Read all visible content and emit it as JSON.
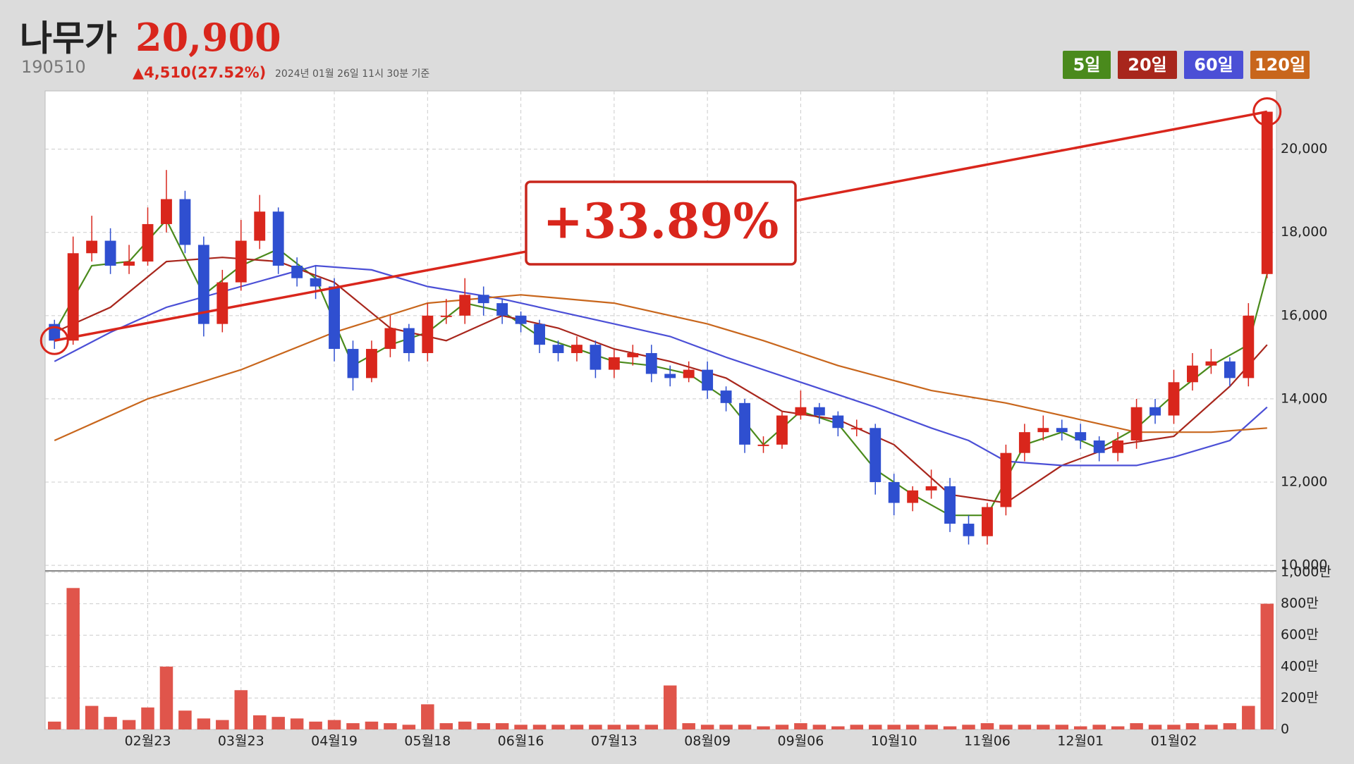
{
  "chart_data": {
    "type": "candlestick",
    "title": "나무가",
    "price": "20,900",
    "code": "190510",
    "change": "▲4,510(27.52%)",
    "timestamp": "2024년 01월 26일 11시 30분 기준",
    "annotation": "+33.89%",
    "grid": true,
    "up_color": "#d9261c",
    "down_color": "#2f4fd0",
    "volume_color": "#e0554b",
    "categories": [
      null,
      null,
      null,
      null,
      null,
      "02월23",
      null,
      null,
      null,
      null,
      "03월23",
      null,
      null,
      null,
      null,
      "04월19",
      null,
      null,
      null,
      null,
      "05월18",
      null,
      null,
      null,
      null,
      "06월16",
      null,
      null,
      null,
      null,
      "07월13",
      null,
      null,
      null,
      null,
      "08월09",
      null,
      null,
      null,
      null,
      "09월06",
      null,
      null,
      null,
      null,
      "10월10",
      null,
      null,
      null,
      null,
      "11월06",
      null,
      null,
      null,
      null,
      "12월01",
      null,
      null,
      null,
      null,
      "01월02",
      null,
      null,
      null,
      null,
      null
    ],
    "open": [
      15800,
      15400,
      17500,
      17800,
      17200,
      17300,
      18200,
      18800,
      17700,
      15800,
      16800,
      17800,
      18500,
      17200,
      16900,
      16700,
      15200,
      14500,
      15200,
      15700,
      15100,
      16000,
      16000,
      16500,
      16300,
      16000,
      15800,
      15300,
      15100,
      15300,
      14700,
      15000,
      15100,
      14600,
      14500,
      14700,
      14200,
      13900,
      12900,
      12900,
      13600,
      13800,
      13600,
      13300,
      13300,
      12000,
      11500,
      11800,
      11900,
      11000,
      10700,
      11400,
      12700,
      13200,
      13300,
      13200,
      13000,
      12700,
      13000,
      13800,
      13600,
      14400,
      14800,
      14900,
      14500,
      17000
    ],
    "high": [
      15900,
      17900,
      18400,
      18100,
      17700,
      18600,
      19500,
      19000,
      17900,
      17100,
      18300,
      18900,
      18600,
      17400,
      17200,
      16900,
      15400,
      15400,
      16000,
      15800,
      16300,
      16400,
      16900,
      16700,
      16400,
      16100,
      15900,
      15400,
      15500,
      15400,
      15200,
      15300,
      15300,
      14800,
      14900,
      14900,
      14300,
      14000,
      13100,
      13700,
      14200,
      13900,
      13700,
      13500,
      13400,
      12200,
      11900,
      12300,
      12100,
      11200,
      11500,
      12900,
      13400,
      13600,
      13500,
      13400,
      13100,
      13200,
      14000,
      14000,
      14700,
      15100,
      15200,
      15000,
      16300,
      20900
    ],
    "low": [
      15200,
      15300,
      17300,
      17000,
      17000,
      17200,
      18000,
      17500,
      15500,
      15600,
      16600,
      17600,
      17000,
      16700,
      16400,
      14900,
      14200,
      14400,
      15000,
      14900,
      14900,
      15800,
      15800,
      16000,
      15800,
      15600,
      15100,
      14900,
      14900,
      14500,
      14500,
      14800,
      14400,
      14300,
      14400,
      14000,
      13700,
      12700,
      12700,
      12800,
      13500,
      13400,
      13100,
      13100,
      11700,
      11200,
      11300,
      11600,
      10800,
      10500,
      10500,
      11200,
      12500,
      13000,
      13000,
      12800,
      12500,
      12500,
      12800,
      13400,
      13400,
      14200,
      14600,
      14300,
      14300,
      16900
    ],
    "close": [
      15400,
      17500,
      17800,
      17200,
      17300,
      18200,
      18800,
      17700,
      15800,
      16800,
      17800,
      18500,
      17200,
      16900,
      16700,
      15200,
      14500,
      15200,
      15700,
      15100,
      16000,
      16000,
      16500,
      16300,
      16000,
      15800,
      15300,
      15100,
      15300,
      14700,
      15000,
      15100,
      14600,
      14500,
      14700,
      14200,
      13900,
      12900,
      12900,
      13600,
      13800,
      13600,
      13300,
      13300,
      12000,
      11500,
      11800,
      11900,
      11000,
      10700,
      11400,
      12700,
      13200,
      13300,
      13200,
      13000,
      12700,
      13000,
      13800,
      13600,
      14400,
      14800,
      14900,
      14500,
      16000,
      20900
    ],
    "volume": [
      500000,
      9000000,
      1500000,
      800000,
      600000,
      1400000,
      4000000,
      1200000,
      700000,
      600000,
      2500000,
      900000,
      800000,
      700000,
      500000,
      600000,
      400000,
      500000,
      400000,
      300000,
      1600000,
      400000,
      500000,
      400000,
      400000,
      300000,
      300000,
      300000,
      300000,
      300000,
      300000,
      300000,
      300000,
      2800000,
      400000,
      300000,
      300000,
      300000,
      200000,
      300000,
      400000,
      300000,
      200000,
      300000,
      300000,
      300000,
      300000,
      300000,
      200000,
      300000,
      400000,
      300000,
      300000,
      300000,
      300000,
      200000,
      300000,
      200000,
      400000,
      300000,
      300000,
      400000,
      300000,
      400000,
      1500000,
      8000000
    ],
    "ylim": [
      9900,
      21400
    ],
    "yticks": [
      {
        "value": 10000,
        "label": "10,000"
      },
      {
        "value": 12000,
        "label": "12,000"
      },
      {
        "value": 14000,
        "label": "14,000"
      },
      {
        "value": 16000,
        "label": "16,000"
      },
      {
        "value": 18000,
        "label": "18,000"
      },
      {
        "value": 20000,
        "label": "20,000"
      }
    ],
    "volume_ylim": [
      0,
      10000000
    ],
    "volume_yticks": [
      0,
      {
        "value": 2000000,
        "label": "200만"
      },
      {
        "value": 4000000,
        "label": "400만"
      },
      {
        "value": 6000000,
        "label": "600만"
      },
      {
        "value": 8000000,
        "label": "800만"
      },
      {
        "value": 10000000,
        "label": "1,000만"
      }
    ],
    "moving_averages": [
      {
        "name": "5일",
        "color": "#4a8a1c",
        "x": [
          0,
          2,
          4,
          6,
          8,
          10,
          12,
          14,
          16,
          18,
          20,
          22,
          24,
          26,
          28,
          30,
          32,
          34,
          36,
          38,
          40,
          42,
          44,
          46,
          48,
          50,
          52,
          54,
          56,
          58,
          60,
          62,
          64,
          65
        ],
        "values": [
          15600,
          17200,
          17300,
          18300,
          16500,
          17200,
          17600,
          16900,
          14800,
          15300,
          15600,
          16300,
          16100,
          15500,
          15200,
          14900,
          14800,
          14600,
          14000,
          12900,
          13700,
          13400,
          12300,
          11700,
          11200,
          11200,
          12900,
          13200,
          12800,
          13300,
          14100,
          14800,
          15300,
          17000
        ]
      },
      {
        "name": "20일",
        "color": "#a8261c",
        "x": [
          0,
          3,
          6,
          9,
          12,
          15,
          18,
          21,
          24,
          27,
          30,
          33,
          36,
          39,
          42,
          45,
          48,
          51,
          54,
          57,
          60,
          63,
          65
        ],
        "values": [
          15600,
          16200,
          17300,
          17400,
          17300,
          16800,
          15700,
          15400,
          16000,
          15700,
          15200,
          14900,
          14500,
          13700,
          13500,
          12900,
          11700,
          11500,
          12400,
          12900,
          13100,
          14300,
          15300
        ]
      },
      {
        "name": "60일",
        "color": "#4b4fd6",
        "x": [
          0,
          3,
          6,
          10,
          14,
          17,
          20,
          24,
          27,
          30,
          33,
          36,
          40,
          44,
          47,
          49,
          51,
          54,
          58,
          60,
          63,
          65
        ],
        "values": [
          14900,
          15600,
          16200,
          16700,
          17200,
          17100,
          16700,
          16400,
          16100,
          15800,
          15500,
          15000,
          14400,
          13800,
          13300,
          13000,
          12500,
          12400,
          12400,
          12600,
          13000,
          13800
        ]
      },
      {
        "name": "120일",
        "color": "#c8661c",
        "x": [
          0,
          5,
          10,
          15,
          20,
          25,
          30,
          35,
          38,
          42,
          47,
          51,
          55,
          58,
          62,
          65
        ],
        "values": [
          13000,
          14000,
          14700,
          15600,
          16300,
          16500,
          16300,
          15800,
          15400,
          14800,
          14200,
          13900,
          13500,
          13200,
          13200,
          13300
        ]
      }
    ]
  }
}
